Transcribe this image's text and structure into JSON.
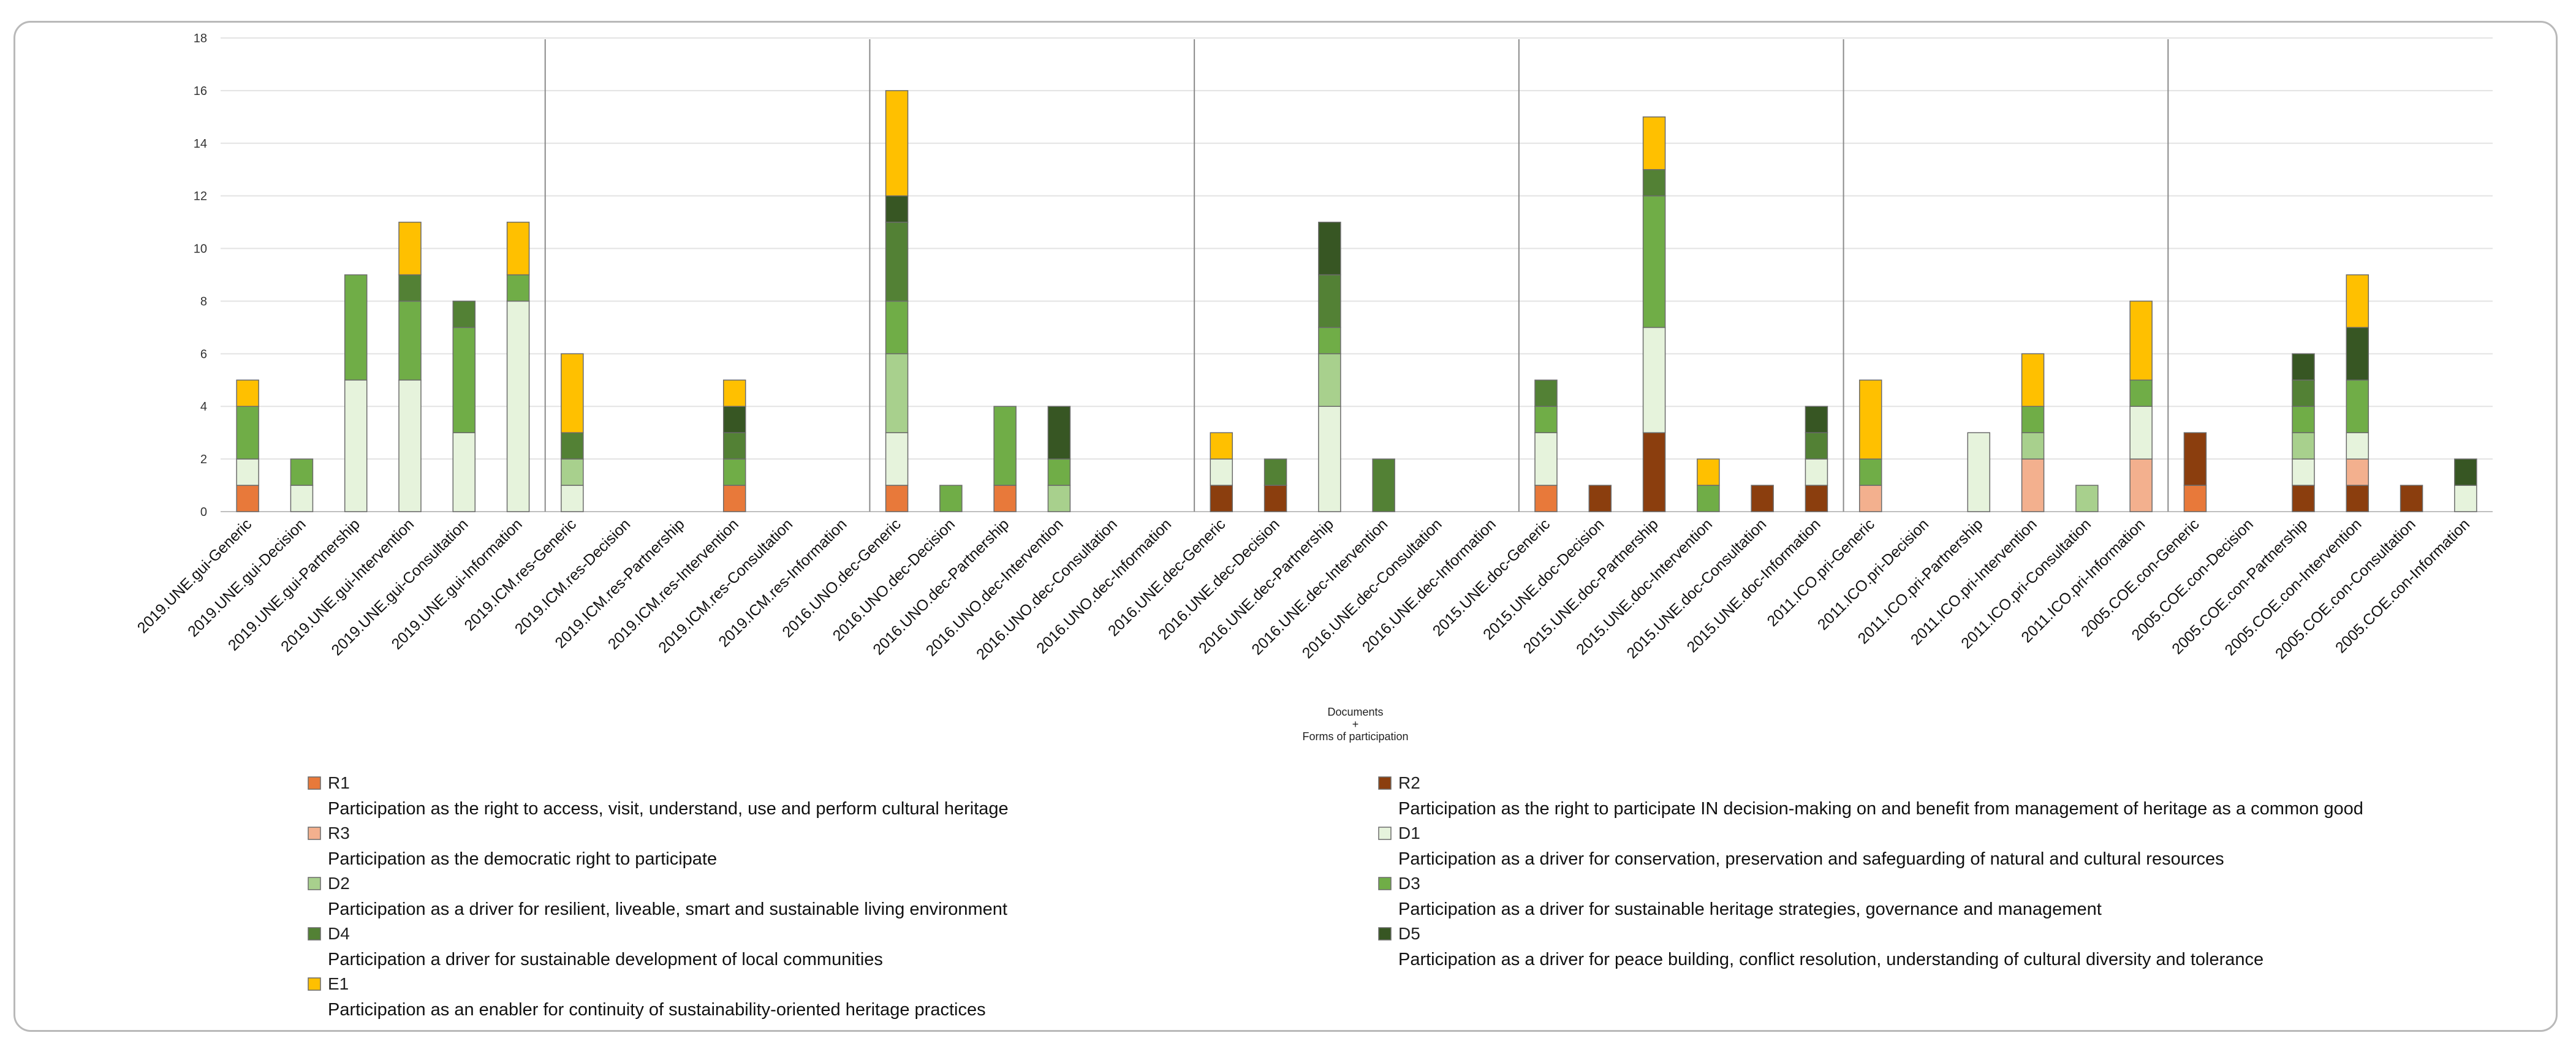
{
  "chart_data": {
    "type": "bar",
    "stacked": true,
    "title": "",
    "xlabel": "Documents + Forms of participation",
    "xlabel_lines": [
      "Documents",
      "+",
      "Forms of participation"
    ],
    "ylabel": "",
    "ylim": [
      0,
      18
    ],
    "yticks": [
      "0",
      "2",
      "4",
      "6",
      "8",
      "10",
      "12",
      "14",
      "16",
      "18"
    ],
    "grid": "horizontal",
    "legend_position": "bottom",
    "categories": [
      "2019.UNE.gui-Generic",
      "2019.UNE.gui-Decision",
      "2019.UNE.gui-Partnership",
      "2019.UNE.gui-Intervention",
      "2019.UNE.gui-Consultation",
      "2019.UNE.gui-Information",
      "2019.ICM.res-Generic",
      "2019.ICM.res-Decision",
      "2019.ICM.res-Partnership",
      "2019.ICM.res-Intervention",
      "2019.ICM.res-Consultation",
      "2019.ICM.res-Information",
      "2016.UNO.dec-Generic",
      "2016.UNO.dec-Decision",
      "2016.UNO.dec-Partnership",
      "2016.UNO.dec-Intervention",
      "2016.UNO.dec-Consultation",
      "2016.UNO.dec-Information",
      "2016.UNE.dec-Generic",
      "2016.UNE.dec-Decision",
      "2016.UNE.dec-Partnership",
      "2016.UNE.dec-Intervention",
      "2016.UNE.dec-Consultation",
      "2016.UNE.dec-Information",
      "2015.UNE.doc-Generic",
      "2015.UNE.doc-Decision",
      "2015.UNE.doc-Partnership",
      "2015.UNE.doc-Intervention",
      "2015.UNE.doc-Consultation",
      "2015.UNE.doc-Information",
      "2011.ICO.pri-Generic",
      "2011.ICO.pri-Decision",
      "2011.ICO.pri-Partnership",
      "2011.ICO.pri-Intervention",
      "2011.ICO.pri-Consultation",
      "2011.ICO.pri-Information",
      "2005.COE.con-Generic",
      "2005.COE.con-Decision",
      "2005.COE.con-Partnership",
      "2005.COE.con-Intervention",
      "2005.COE.con-Consultation",
      "2005.COE.con-Information"
    ],
    "group_size": 6,
    "series": [
      {
        "name": "R1",
        "description": "Participation as the right to access, visit, understand, use and perform cultural heritage",
        "color": "#e8793a",
        "values": [
          1,
          0,
          0,
          0,
          0,
          0,
          0,
          0,
          0,
          1,
          0,
          0,
          1,
          0,
          1,
          0,
          0,
          0,
          0,
          0,
          0,
          0,
          0,
          0,
          1,
          0,
          0,
          0,
          0,
          0,
          0,
          0,
          0,
          0,
          0,
          0,
          1,
          0,
          0,
          0,
          0,
          0
        ]
      },
      {
        "name": "R2",
        "description": "Participation as the right to participate IN decision-making on and benefit from management of heritage as a common good",
        "color": "#8b3e0e",
        "values": [
          0,
          0,
          0,
          0,
          0,
          0,
          0,
          0,
          0,
          0,
          0,
          0,
          0,
          0,
          0,
          0,
          0,
          0,
          1,
          1,
          0,
          0,
          0,
          0,
          0,
          1,
          3,
          0,
          1,
          1,
          0,
          0,
          0,
          0,
          0,
          0,
          2,
          0,
          1,
          1,
          1,
          0
        ]
      },
      {
        "name": "R3",
        "description": "Participation as the democratic right to participate",
        "color": "#f3b08e",
        "values": [
          0,
          0,
          0,
          0,
          0,
          0,
          0,
          0,
          0,
          0,
          0,
          0,
          0,
          0,
          0,
          0,
          0,
          0,
          0,
          0,
          0,
          0,
          0,
          0,
          0,
          0,
          0,
          0,
          0,
          0,
          1,
          0,
          0,
          2,
          0,
          2,
          0,
          0,
          0,
          1,
          0,
          0
        ]
      },
      {
        "name": "D1",
        "description": "Participation as a driver for conservation, preservation and safeguarding of natural and cultural resources",
        "color": "#e6f3dc",
        "values": [
          1,
          1,
          5,
          5,
          3,
          8,
          1,
          0,
          0,
          0,
          0,
          0,
          2,
          0,
          0,
          0,
          0,
          0,
          1,
          0,
          4,
          0,
          0,
          0,
          2,
          0,
          4,
          0,
          0,
          1,
          0,
          0,
          3,
          0,
          0,
          2,
          0,
          0,
          1,
          1,
          0,
          1
        ]
      },
      {
        "name": "D2",
        "description": "Participation as a driver for resilient, liveable, smart and sustainable living environment",
        "color": "#a8d08d",
        "values": [
          0,
          0,
          0,
          0,
          0,
          0,
          1,
          0,
          0,
          0,
          0,
          0,
          3,
          0,
          0,
          1,
          0,
          0,
          0,
          0,
          2,
          0,
          0,
          0,
          0,
          0,
          0,
          0,
          0,
          0,
          0,
          0,
          0,
          1,
          1,
          0,
          0,
          0,
          1,
          0,
          0,
          0
        ]
      },
      {
        "name": "D3",
        "description": "Participation as a driver for sustainable heritage strategies, governance and management",
        "color": "#70ad47",
        "values": [
          2,
          1,
          4,
          3,
          4,
          1,
          0,
          0,
          0,
          1,
          0,
          0,
          2,
          1,
          3,
          1,
          0,
          0,
          0,
          0,
          1,
          0,
          0,
          0,
          1,
          0,
          5,
          1,
          0,
          0,
          1,
          0,
          0,
          1,
          0,
          1,
          0,
          0,
          1,
          2,
          0,
          0
        ]
      },
      {
        "name": "D4",
        "description": "Participation a driver for sustainable development of local communities",
        "color": "#538135",
        "values": [
          0,
          0,
          0,
          1,
          1,
          0,
          1,
          0,
          0,
          1,
          0,
          0,
          3,
          0,
          0,
          0,
          0,
          0,
          0,
          1,
          2,
          2,
          0,
          0,
          1,
          0,
          1,
          0,
          0,
          1,
          0,
          0,
          0,
          0,
          0,
          0,
          0,
          0,
          1,
          0,
          0,
          0
        ]
      },
      {
        "name": "D5",
        "description": "Participation as a driver for peace building, conflict resolution, understanding of cultural diversity and tolerance",
        "color": "#375623",
        "values": [
          0,
          0,
          0,
          0,
          0,
          0,
          0,
          0,
          0,
          1,
          0,
          0,
          1,
          0,
          0,
          2,
          0,
          0,
          0,
          0,
          2,
          0,
          0,
          0,
          0,
          0,
          0,
          0,
          0,
          1,
          0,
          0,
          0,
          0,
          0,
          0,
          0,
          0,
          1,
          2,
          0,
          1
        ]
      },
      {
        "name": "E1",
        "description": "Participation as an enabler for continuity of sustainability-oriented heritage practices",
        "color": "#ffc000",
        "values": [
          1,
          0,
          0,
          2,
          0,
          2,
          3,
          0,
          0,
          1,
          0,
          0,
          4,
          0,
          0,
          0,
          0,
          0,
          1,
          0,
          0,
          0,
          0,
          0,
          0,
          0,
          2,
          1,
          0,
          0,
          3,
          0,
          0,
          2,
          0,
          3,
          0,
          0,
          0,
          2,
          0,
          0
        ]
      }
    ],
    "legend_order_left": [
      "R1",
      "R3",
      "D2",
      "D4",
      "E1"
    ],
    "legend_order_right": [
      "R2",
      "D1",
      "D3",
      "D5"
    ]
  }
}
